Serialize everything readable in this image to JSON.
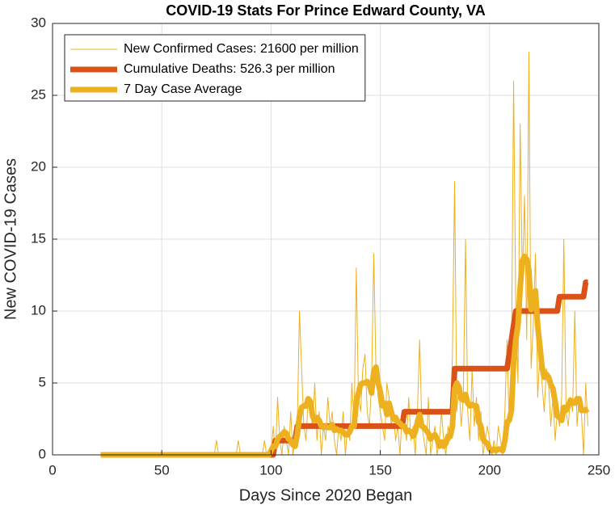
{
  "chart_data": {
    "type": "line",
    "title": "COVID-19 Stats For Prince Edward County, VA",
    "xlabel": "Days Since 2020 Began",
    "ylabel": "New COVID-19 Cases",
    "xlim": [
      0,
      250
    ],
    "xticks": [
      0,
      50,
      100,
      150,
      200,
      250
    ],
    "ylim": [
      0,
      30
    ],
    "yticks": [
      0,
      5,
      10,
      15,
      20,
      25,
      30
    ],
    "grid": true,
    "legend": "northwest",
    "x": [
      22,
      23,
      24,
      25,
      26,
      27,
      28,
      29,
      30,
      31,
      32,
      33,
      34,
      35,
      36,
      37,
      38,
      39,
      40,
      41,
      42,
      43,
      44,
      45,
      46,
      47,
      48,
      49,
      50,
      51,
      52,
      53,
      54,
      55,
      56,
      57,
      58,
      59,
      60,
      61,
      62,
      63,
      64,
      65,
      66,
      67,
      68,
      69,
      70,
      71,
      72,
      73,
      74,
      75,
      76,
      77,
      78,
      79,
      80,
      81,
      82,
      83,
      84,
      85,
      86,
      87,
      88,
      89,
      90,
      91,
      92,
      93,
      94,
      95,
      96,
      97,
      98,
      99,
      100,
      101,
      102,
      103,
      104,
      105,
      106,
      107,
      108,
      109,
      110,
      111,
      112,
      113,
      114,
      115,
      116,
      117,
      118,
      119,
      120,
      121,
      122,
      123,
      124,
      125,
      126,
      127,
      128,
      129,
      130,
      131,
      132,
      133,
      134,
      135,
      136,
      137,
      138,
      139,
      140,
      141,
      142,
      143,
      144,
      145,
      146,
      147,
      148,
      149,
      150,
      151,
      152,
      153,
      154,
      155,
      156,
      157,
      158,
      159,
      160,
      161,
      162,
      163,
      164,
      165,
      166,
      167,
      168,
      169,
      170,
      171,
      172,
      173,
      174,
      175,
      176,
      177,
      178,
      179,
      180,
      181,
      182,
      183,
      184,
      185,
      186,
      187,
      188,
      189,
      190,
      191,
      192,
      193,
      194,
      195,
      196,
      197,
      198,
      199,
      200,
      201,
      202,
      203,
      204,
      205,
      206,
      207,
      208,
      209,
      210,
      211,
      212,
      213,
      214,
      215,
      216,
      217,
      218,
      219,
      220,
      221,
      222,
      223,
      224,
      225,
      226,
      227,
      228,
      229,
      230,
      231,
      232,
      233,
      234,
      235,
      236,
      237,
      238,
      239,
      240,
      241,
      242,
      243,
      244,
      245
    ],
    "series": [
      {
        "name": "New Confirmed Cases: 21600 per million",
        "color": "#EDB120",
        "width": 1,
        "values": [
          0,
          0,
          0,
          0,
          0,
          0,
          0,
          0,
          0,
          0,
          0,
          0,
          0,
          0,
          0,
          0,
          0,
          0,
          0,
          0,
          0,
          0,
          0,
          0,
          0,
          0,
          0,
          0,
          0,
          0,
          0,
          0,
          0,
          0,
          0,
          0,
          0,
          0,
          0,
          0,
          0,
          0,
          0,
          0,
          0,
          0,
          0,
          0,
          0,
          0,
          0,
          0,
          0,
          1,
          0,
          0,
          0,
          0,
          0,
          0,
          0,
          0,
          0,
          1,
          0,
          0,
          0,
          0,
          0,
          0,
          0,
          0,
          0,
          0,
          0,
          1,
          0,
          0,
          0,
          2,
          0,
          4,
          1,
          0,
          2,
          1,
          0,
          3,
          0,
          1,
          2,
          10,
          6,
          2,
          1,
          4,
          3,
          2,
          5,
          1,
          3,
          0,
          2,
          1,
          4,
          2,
          3,
          1,
          0,
          2,
          1,
          3,
          0,
          2,
          1,
          5,
          2,
          13,
          4,
          3,
          6,
          7,
          3,
          2,
          5,
          14,
          6,
          4,
          3,
          2,
          1,
          5,
          4,
          2,
          3,
          1,
          2,
          0,
          3,
          2,
          1,
          4,
          1,
          2,
          0,
          3,
          8,
          2,
          1,
          0,
          4,
          0,
          1,
          2,
          0,
          1,
          3,
          1,
          0,
          2,
          1,
          7,
          19,
          3,
          5,
          2,
          4,
          15,
          3,
          1,
          6,
          2,
          4,
          1,
          3,
          0,
          1,
          2,
          1,
          0,
          1,
          0,
          2,
          1,
          0,
          3,
          8,
          2,
          6,
          26,
          10,
          5,
          23,
          12,
          18,
          8,
          28,
          6,
          9,
          14,
          4,
          7,
          5,
          3,
          6,
          5,
          2,
          4,
          1,
          3,
          2,
          4,
          15,
          3,
          2,
          4,
          3,
          10,
          2,
          4,
          3,
          0,
          5,
          2
        ]
      },
      {
        "name": "Cumulative Deaths: 526.3 per million",
        "color": "#D95319",
        "width": 7,
        "values": [
          0,
          0,
          0,
          0,
          0,
          0,
          0,
          0,
          0,
          0,
          0,
          0,
          0,
          0,
          0,
          0,
          0,
          0,
          0,
          0,
          0,
          0,
          0,
          0,
          0,
          0,
          0,
          0,
          0,
          0,
          0,
          0,
          0,
          0,
          0,
          0,
          0,
          0,
          0,
          0,
          0,
          0,
          0,
          0,
          0,
          0,
          0,
          0,
          0,
          0,
          0,
          0,
          0,
          0,
          0,
          0,
          0,
          0,
          0,
          0,
          0,
          0,
          0,
          0,
          0,
          0,
          0,
          0,
          0,
          0,
          0,
          0,
          0,
          0,
          0,
          0,
          0,
          0,
          0,
          0,
          1,
          1,
          1,
          1,
          1,
          1,
          1,
          1,
          1,
          1,
          2,
          2,
          2,
          2,
          2,
          2,
          2,
          2,
          2,
          2,
          2,
          2,
          2,
          2,
          2,
          2,
          2,
          2,
          2,
          2,
          2,
          2,
          2,
          2,
          2,
          2,
          2,
          2,
          2,
          2,
          2,
          2,
          2,
          2,
          2,
          2,
          2,
          2,
          2,
          2,
          2,
          2,
          2,
          2,
          2,
          2,
          2,
          2,
          2,
          3,
          3,
          3,
          3,
          3,
          3,
          3,
          3,
          3,
          3,
          3,
          3,
          3,
          3,
          3,
          3,
          3,
          3,
          3,
          3,
          3,
          3,
          3,
          6,
          6,
          6,
          6,
          6,
          6,
          6,
          6,
          6,
          6,
          6,
          6,
          6,
          6,
          6,
          6,
          6,
          6,
          6,
          6,
          6,
          6,
          6,
          6,
          6,
          7,
          8,
          9,
          10,
          10,
          10,
          10,
          10,
          10,
          10,
          10,
          10,
          10,
          10,
          10,
          10,
          10,
          10,
          10,
          10,
          10,
          10,
          10,
          11,
          11,
          11,
          11,
          11,
          11,
          11,
          11,
          11,
          11,
          11,
          11,
          12,
          12
        ]
      },
      {
        "name": "7 Day Case Average",
        "color": "#EDB120",
        "width": 7,
        "values": [
          0,
          0,
          0,
          0,
          0,
          0,
          0,
          0,
          0,
          0,
          0,
          0,
          0,
          0,
          0,
          0,
          0,
          0,
          0,
          0,
          0,
          0,
          0,
          0,
          0,
          0,
          0,
          0,
          0,
          0,
          0,
          0,
          0,
          0,
          0,
          0,
          0,
          0,
          0,
          0,
          0,
          0,
          0,
          0,
          0,
          0,
          0,
          0,
          0,
          0,
          0,
          0,
          0,
          0,
          0,
          0,
          0,
          0,
          0,
          0,
          0,
          0,
          0,
          0,
          0,
          0,
          0,
          0,
          0,
          0,
          0,
          0,
          0,
          0,
          0,
          0,
          0,
          0,
          0.3,
          0.6,
          0.6,
          1.1,
          1.3,
          1.4,
          1.6,
          1.5,
          1.1,
          1.0,
          0.7,
          0.6,
          1.4,
          2.7,
          3.3,
          3.4,
          3.4,
          3.9,
          3.7,
          2.7,
          2.4,
          2.6,
          2.4,
          2.0,
          1.9,
          2.0,
          1.9,
          1.9,
          2.1,
          1.7,
          1.8,
          1.7,
          1.7,
          1.6,
          1.4,
          1.4,
          1.6,
          2.0,
          2.0,
          3.7,
          4.3,
          4.9,
          5.0,
          5.0,
          5.1,
          4.9,
          4.3,
          5.8,
          6.1,
          5.0,
          4.4,
          3.4,
          3.6,
          2.8,
          3.6,
          3.0,
          2.5,
          2.6,
          2.3,
          2.2,
          2.0,
          2.0,
          1.6,
          1.7,
          1.6,
          1.3,
          1.6,
          2.3,
          2.8,
          2.0,
          1.9,
          1.7,
          1.5,
          1.1,
          1.3,
          1.4,
          1.1,
          0.6,
          0.9,
          0.6,
          0.8,
          1.3,
          1.3,
          2.0,
          4.6,
          5.0,
          4.7,
          3.9,
          3.8,
          4.2,
          3.6,
          3.4,
          3.5,
          3.4,
          3.4,
          2.3,
          2.0,
          1.1,
          0.9,
          0.8,
          0.4,
          0.3,
          0.4,
          0.3,
          0.4,
          0.4,
          0.3,
          1.0,
          2.3,
          2.4,
          3.1,
          6.4,
          8.0,
          9.0,
          11.6,
          13.5,
          13.8,
          13.6,
          12.8,
          10.1,
          10.7,
          11.4,
          9.0,
          7.6,
          6.1,
          5.4,
          5.6,
          5.4,
          4.9,
          4.6,
          3.7,
          2.7,
          2.6,
          2.4,
          3.3,
          3.1,
          3.4,
          3.8,
          3.6,
          3.6,
          3.9,
          3.9,
          3.1,
          3.1,
          3.1,
          3.2
        ]
      }
    ]
  }
}
